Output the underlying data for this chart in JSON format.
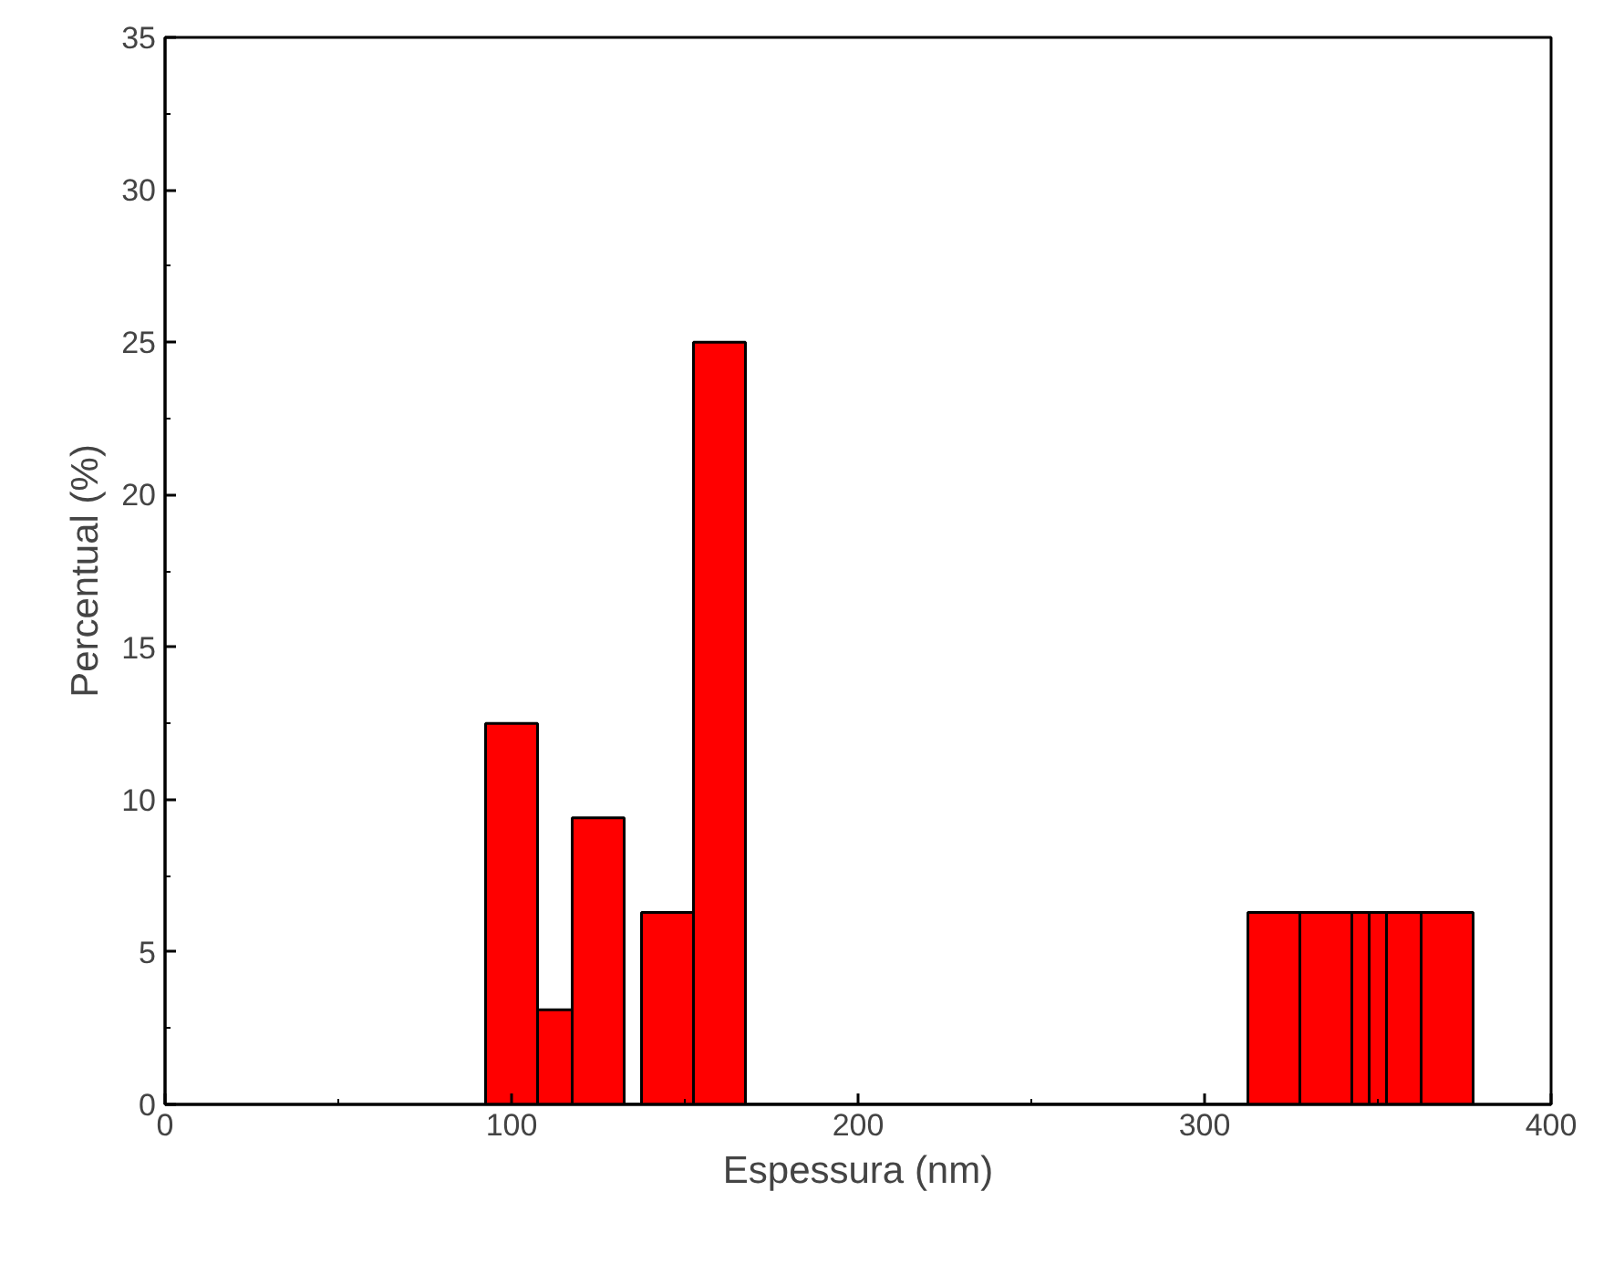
{
  "chart_data": {
    "type": "histogram",
    "xlabel": "Espessura (nm)",
    "ylabel": "Percentual (%)",
    "bins": [
      92.5,
      107.5,
      117.5,
      132.5,
      137.5,
      152.5,
      167.5,
      312.5,
      327.5,
      342.5,
      347.5,
      352.5,
      362.5,
      377.5
    ],
    "values": [
      12.5,
      3.1,
      9.4,
      0,
      6.3,
      25,
      0,
      6.3,
      6.3,
      6.3,
      6.3,
      6.3,
      6.3
    ],
    "color": "#ff0000",
    "xlim": [
      0,
      400
    ],
    "xticks": [
      0,
      100,
      200,
      300,
      400
    ],
    "ylim": [
      0,
      35
    ],
    "yticks": [
      0,
      5,
      10,
      15,
      20,
      25,
      30,
      35
    ],
    "grid": false
  }
}
